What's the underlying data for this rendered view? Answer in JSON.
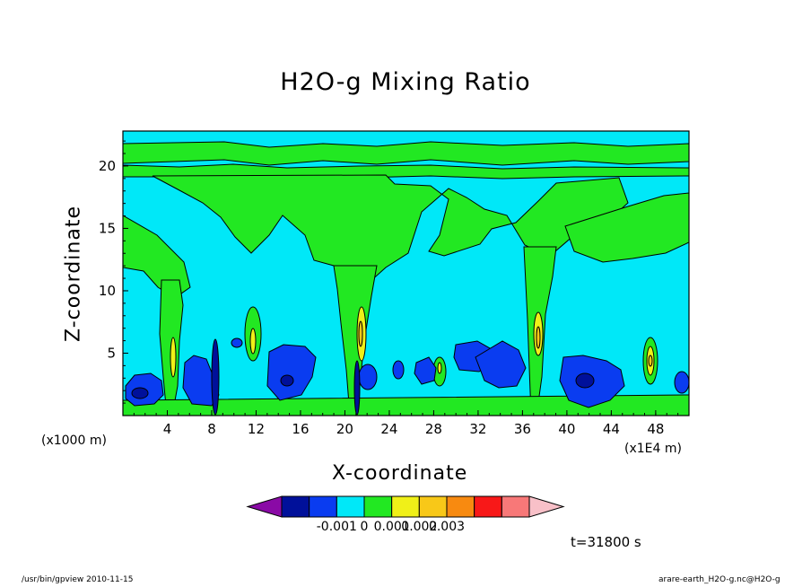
{
  "chart_data": {
    "type": "heatmap",
    "title": "H2O-g Mixing Ratio",
    "xlabel": "X-coordinate",
    "ylabel": "Z-coordinate",
    "x_unit_left": "(x1000 m)",
    "x_unit_right": "(x1E4 m)",
    "xlim": [
      0,
      51
    ],
    "ylim": [
      0,
      22.8
    ],
    "xticks": [
      4,
      8,
      12,
      16,
      20,
      24,
      28,
      32,
      36,
      40,
      44,
      48
    ],
    "yticks": [
      5,
      10,
      15,
      20
    ],
    "time_label": "t=31800 s",
    "colorbar": {
      "colors": [
        "#8a0aa6",
        "#00109a",
        "#0a3cf0",
        "#00e8f8",
        "#22e822",
        "#f0f018",
        "#f8c818",
        "#f88a10",
        "#f81818",
        "#f87878",
        "#f8c0c8"
      ],
      "tick_labels": [
        "-0.001",
        "0",
        "0.001",
        "0.002",
        "0.003"
      ]
    },
    "colors": {
      "background_field": "#00e8f8",
      "moist": "#22e822",
      "dry": "#0a3cf0",
      "very_dry": "#00109a",
      "yellow": "#f0f018",
      "orange": "#f8c818"
    }
  },
  "footer": {
    "left": "/usr/bin/gpview  2010-11-15",
    "right": "arare-earth_H2O-g.nc@H2O-g"
  }
}
